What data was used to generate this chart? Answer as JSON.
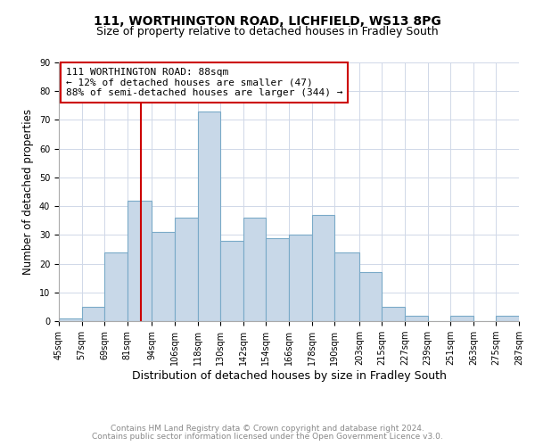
{
  "title1": "111, WORTHINGTON ROAD, LICHFIELD, WS13 8PG",
  "title2": "Size of property relative to detached houses in Fradley South",
  "xlabel": "Distribution of detached houses by size in Fradley South",
  "ylabel": "Number of detached properties",
  "bin_edges": [
    45,
    57,
    69,
    81,
    94,
    106,
    118,
    130,
    142,
    154,
    166,
    178,
    190,
    203,
    215,
    227,
    239,
    251,
    263,
    275,
    287
  ],
  "bar_heights": [
    1,
    5,
    24,
    42,
    31,
    36,
    73,
    28,
    36,
    29,
    30,
    37,
    24,
    17,
    5,
    2,
    0,
    2,
    0,
    2
  ],
  "bar_color": "#c8d8e8",
  "bar_edgecolor": "#7aaac8",
  "vline_x": 88,
  "vline_color": "#cc0000",
  "annotation_text": "111 WORTHINGTON ROAD: 88sqm\n← 12% of detached houses are smaller (47)\n88% of semi-detached houses are larger (344) →",
  "annotation_box_color": "#ffffff",
  "annotation_box_edgecolor": "#cc0000",
  "ylim": [
    0,
    90
  ],
  "yticks": [
    0,
    10,
    20,
    30,
    40,
    50,
    60,
    70,
    80,
    90
  ],
  "footer1": "Contains HM Land Registry data © Crown copyright and database right 2024.",
  "footer2": "Contains public sector information licensed under the Open Government Licence v3.0.",
  "bg_color": "#ffffff",
  "grid_color": "#d0d8e8",
  "title1_fontsize": 10,
  "title2_fontsize": 9,
  "ylabel_fontsize": 8.5,
  "xlabel_fontsize": 9,
  "tick_fontsize": 7,
  "annotation_fontsize": 8,
  "footer_fontsize": 6.5,
  "footer_color": "#888888"
}
